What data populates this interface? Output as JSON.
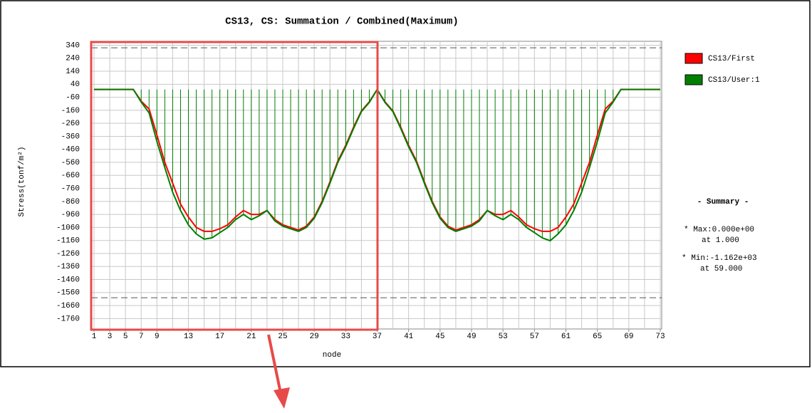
{
  "chart_data": {
    "type": "line",
    "title": "CS13, CS: Summation / Combined(Maximum)",
    "x_label": "node",
    "y_label": "Stress(tonf/m²)",
    "xlim": [
      1,
      73
    ],
    "xticks": [
      1,
      3,
      5,
      7,
      9,
      13,
      17,
      21,
      25,
      29,
      33,
      37,
      41,
      45,
      49,
      53,
      57,
      61,
      65,
      69,
      73
    ],
    "xgrid": [
      1,
      3,
      5,
      7,
      9,
      11,
      13,
      15,
      17,
      19,
      21,
      23,
      25,
      27,
      29,
      31,
      33,
      35,
      37,
      39,
      41,
      43,
      45,
      47,
      49,
      51,
      53,
      55,
      57,
      59,
      61,
      63,
      65,
      67,
      69,
      71,
      73
    ],
    "ylim": [
      -1840,
      370
    ],
    "yticks": [
      340,
      240,
      140,
      40,
      -60,
      -160,
      -260,
      -360,
      -460,
      -560,
      -660,
      -760,
      -860,
      -960,
      -1060,
      -1160,
      -1260,
      -1360,
      -1460,
      -1560,
      -1660,
      -1760
    ],
    "limit_lines": [
      320,
      -1600
    ],
    "grid": true,
    "legend": "right",
    "series": [
      {
        "name": "CS13/First",
        "color": "#ff0000",
        "drop_lines": false,
        "values": [
          0,
          0,
          0,
          0,
          0,
          0,
          -90,
          -150,
          -350,
          -560,
          -720,
          -880,
          -980,
          -1060,
          -1090,
          -1090,
          -1070,
          -1040,
          -980,
          -930,
          -960,
          -960,
          -930,
          -1000,
          -1040,
          -1060,
          -1080,
          -1050,
          -980,
          -860,
          -710,
          -550,
          -430,
          -290,
          -165,
          -95,
          0,
          -95,
          -165,
          -290,
          -430,
          -550,
          -710,
          -860,
          -980,
          -1050,
          -1080,
          -1060,
          -1040,
          -1000,
          -930,
          -960,
          -960,
          -930,
          -980,
          -1040,
          -1070,
          -1090,
          -1090,
          -1060,
          -980,
          -880,
          -720,
          -560,
          -350,
          -150,
          -90,
          0,
          0,
          0,
          0,
          0,
          0
        ]
      },
      {
        "name": "CS13/User:1",
        "color": "#008000",
        "drop_lines": true,
        "values": [
          0,
          0,
          0,
          0,
          0,
          0,
          -97,
          -180,
          -400,
          -600,
          -790,
          -930,
          -1040,
          -1110,
          -1150,
          -1140,
          -1100,
          -1060,
          -1000,
          -960,
          -1000,
          -970,
          -930,
          -1010,
          -1050,
          -1070,
          -1090,
          -1060,
          -990,
          -870,
          -720,
          -560,
          -440,
          -300,
          -170,
          -100,
          0,
          -100,
          -170,
          -300,
          -440,
          -560,
          -720,
          -870,
          -990,
          -1060,
          -1090,
          -1070,
          -1050,
          -1010,
          -930,
          -970,
          -1000,
          -960,
          -1000,
          -1060,
          -1100,
          -1140,
          -1162,
          -1110,
          -1040,
          -930,
          -790,
          -600,
          -400,
          -180,
          -97,
          0,
          0,
          0,
          0,
          0,
          0
        ]
      }
    ],
    "summary": {
      "title": "- Summary -",
      "max": "* Max:0.000e+00",
      "max_at": "at  1.000",
      "min": "* Min:-1.162e+03",
      "min_at": "at 59.000"
    }
  }
}
